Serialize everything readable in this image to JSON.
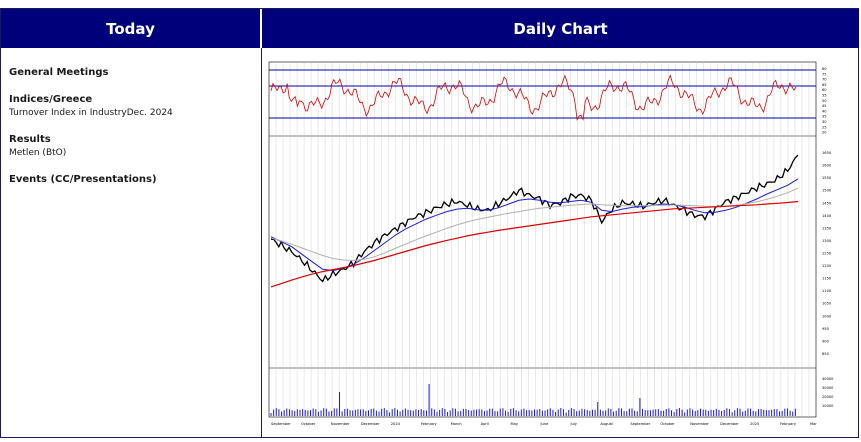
{
  "header": {
    "left_title": "Today",
    "right_title": "Daily Chart"
  },
  "left": {
    "general_meetings": {
      "title": "General Meetings",
      "items": []
    },
    "indices": {
      "title": "Indices/Greece",
      "items": [
        "Turnover Index in IndustryDec. 2024"
      ]
    },
    "results": {
      "title": "Results",
      "items": [
        "Metlen (BtO)"
      ]
    },
    "events": {
      "title": "Events (CC/Presentations)",
      "items": []
    }
  },
  "chart_data": {
    "type": "line",
    "panels": [
      "rsi",
      "price",
      "volume"
    ],
    "rsi": {
      "levels": [
        90,
        70,
        30
      ],
      "tick_labels": [
        "80",
        "75",
        "70",
        "65",
        "60",
        "55",
        "50",
        "45",
        "40",
        "35",
        "30",
        "25",
        "20"
      ]
    },
    "price": {
      "ylim": [
        800,
        1700
      ],
      "tick_labels": [
        "1650",
        "1600",
        "1550",
        "1500",
        "1450",
        "1400",
        "1350",
        "1300",
        "1250",
        "1200",
        "1150",
        "1100",
        "1050",
        "1000",
        "950",
        "900",
        "850"
      ],
      "series": [
        {
          "values": [
            1305,
            1280,
            1255,
            1220,
            1180,
            1140,
            1165,
            1185,
            1210,
            1255,
            1290,
            1320,
            1345,
            1370,
            1395,
            1410,
            1430,
            1445,
            1455,
            1440,
            1425,
            1420,
            1445,
            1470,
            1500,
            1480,
            1465,
            1440,
            1450,
            1475,
            1480,
            1460,
            1375,
            1425,
            1450,
            1445,
            1435,
            1450,
            1460,
            1440,
            1420,
            1400,
            1395,
            1425,
            1455,
            1470,
            1490,
            1510,
            1525,
            1545,
            1580,
            1640
          ]
        },
        {
          "values": [
            1315,
            1295,
            1275,
            1245,
            1215,
            1185,
            1180,
            1190,
            1205,
            1230,
            1260,
            1290,
            1320,
            1345,
            1365,
            1385,
            1400,
            1415,
            1425,
            1428,
            1422,
            1420,
            1430,
            1445,
            1460,
            1465,
            1460,
            1452,
            1450,
            1455,
            1460,
            1452,
            1420,
            1415,
            1425,
            1432,
            1435,
            1440,
            1445,
            1442,
            1433,
            1420,
            1410,
            1412,
            1420,
            1432,
            1448,
            1465,
            1485,
            1502,
            1520,
            1545
          ]
        },
        {
          "values": [
            1310,
            1298,
            1285,
            1270,
            1255,
            1240,
            1228,
            1222,
            1220,
            1225,
            1235,
            1250,
            1268,
            1285,
            1302,
            1318,
            1333,
            1348,
            1362,
            1374,
            1384,
            1392,
            1400,
            1408,
            1415,
            1422,
            1428,
            1432,
            1436,
            1440,
            1443,
            1445,
            1442,
            1440,
            1438,
            1438,
            1438,
            1439,
            1440,
            1441,
            1440,
            1438,
            1436,
            1435,
            1436,
            1440,
            1446,
            1454,
            1464,
            1476,
            1490,
            1508
          ]
        },
        {
          "values": [
            1115,
            1128,
            1142,
            1155,
            1166,
            1176,
            1184,
            1192,
            1200,
            1210,
            1220,
            1232,
            1244,
            1256,
            1268,
            1280,
            1290,
            1300,
            1309,
            1318,
            1326,
            1333,
            1340,
            1346,
            1352,
            1358,
            1364,
            1370,
            1376,
            1382,
            1388,
            1394,
            1398,
            1402,
            1406,
            1410,
            1414,
            1418,
            1422,
            1426,
            1428,
            1430,
            1432,
            1434,
            1436,
            1438,
            1440,
            1442,
            1445,
            1448,
            1451,
            1455
          ]
        }
      ]
    },
    "volume": {
      "tick_labels": [
        "40000",
        "30000",
        "20000",
        "10000"
      ]
    },
    "x_months": [
      "September",
      "October",
      "November",
      "December",
      "2024",
      "February",
      "March",
      "April",
      "May",
      "June",
      "July",
      "August",
      "September",
      "October",
      "November",
      "December",
      "2025",
      "February",
      "Mar"
    ]
  },
  "colors": {
    "header_bg": "#00007a",
    "rsi_line": "#dd0000",
    "rsi_level": "#0000aa",
    "price": "#000000",
    "ma_short": "#1c1cd6",
    "ma_mid": "#b0b0b0",
    "ma_long": "#dd0000",
    "volume": "#1c1cd6"
  }
}
